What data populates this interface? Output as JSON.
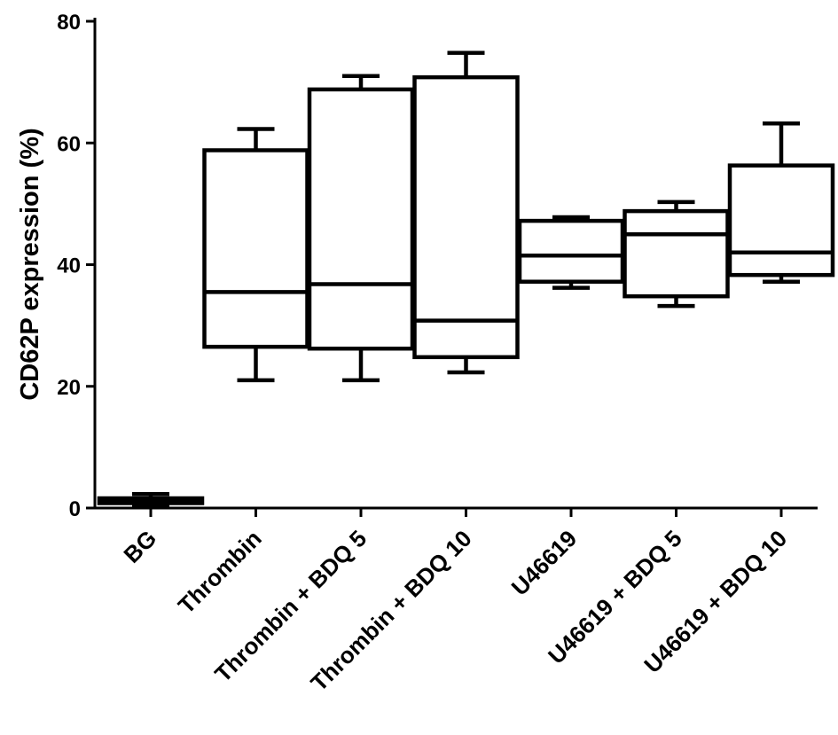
{
  "chart_data": {
    "type": "box",
    "title": "",
    "xlabel": "",
    "ylabel": "CD62P expression (%)",
    "ylim": [
      0,
      80
    ],
    "yticks": [
      0,
      20,
      40,
      60,
      80
    ],
    "grid": false,
    "categories": [
      "BG",
      "Thrombin",
      "Thrombin + BDQ 5",
      "Thrombin + BDQ 10",
      "U46619",
      "U46619 + BDQ 5",
      "U46619 + BDQ 10"
    ],
    "boxes": [
      {
        "min": 0.5,
        "q1": 0.8,
        "median": 1.2,
        "q3": 1.6,
        "max": 2.3
      },
      {
        "min": 21,
        "q1": 26.5,
        "median": 35.5,
        "q3": 58.8,
        "max": 62.3
      },
      {
        "min": 21,
        "q1": 26.2,
        "median": 36.8,
        "q3": 68.8,
        "max": 71
      },
      {
        "min": 22.3,
        "q1": 24.8,
        "median": 30.8,
        "q3": 70.8,
        "max": 74.8
      },
      {
        "min": 36.2,
        "q1": 37.2,
        "median": 41.5,
        "q3": 47.2,
        "max": 47.8
      },
      {
        "min": 33.2,
        "q1": 34.8,
        "median": 45,
        "q3": 48.8,
        "max": 50.3
      },
      {
        "min": 37.2,
        "q1": 38.3,
        "median": 42,
        "q3": 56.3,
        "max": 63.2
      }
    ]
  }
}
